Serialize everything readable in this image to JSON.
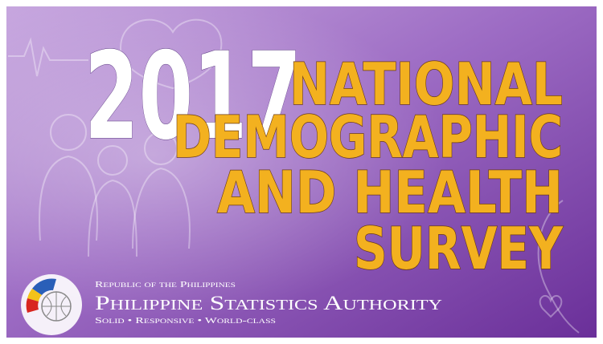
{
  "banner": {
    "year": "2017",
    "title_lines": [
      "NATIONAL",
      "DEMOGRAPHIC",
      "AND HEALTH",
      "SURVEY"
    ],
    "agency": {
      "country": "Republic of the Philippines",
      "name": "Philippine Statistics Authority",
      "tagline": "Solid • Responsive • World-class"
    }
  }
}
